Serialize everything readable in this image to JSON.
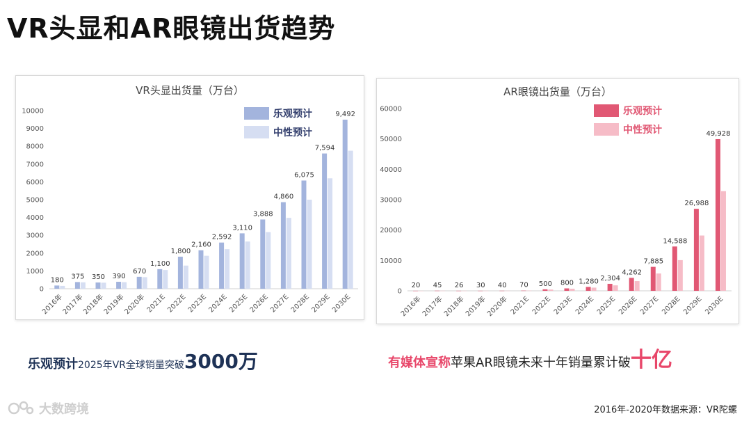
{
  "page": {
    "title": "VR头显和AR眼镜出货趋势",
    "caption_left": {
      "highlight": "乐观预计",
      "middle": "2025年VR全球销量突破",
      "big": "3000万"
    },
    "caption_right": {
      "highlight": "有媒体宣称",
      "middle": "苹果AR眼镜未来十年销量累计破",
      "big": "十亿"
    },
    "logo_text": "大数跨境",
    "source": "2016年-2020年数据来源：VR陀螺"
  },
  "chart_data": [
    {
      "type": "bar",
      "title": "VR头显出货量（万台）",
      "categories": [
        "2016年",
        "2017年",
        "2018年",
        "2019年",
        "2020年",
        "2021E",
        "2022E",
        "2023E",
        "2024E",
        "2025E",
        "2026E",
        "2027E",
        "2028E",
        "2029E",
        "2030E"
      ],
      "series": [
        {
          "name": "乐观预计",
          "color": "#a3b4dd",
          "values": [
            180,
            375,
            350,
            390,
            670,
            1100,
            1800,
            2160,
            2592,
            3110,
            3888,
            4860,
            6075,
            7594,
            9492
          ]
        },
        {
          "name": "中性预计",
          "color": "#d6def2",
          "values": [
            160,
            360,
            340,
            370,
            650,
            1050,
            1300,
            1850,
            2220,
            2650,
            3180,
            3980,
            5000,
            6200,
            7750
          ]
        }
      ],
      "labels": [
        "180",
        "375",
        "350",
        "390",
        "670",
        "1,100",
        "1,800",
        "2,160",
        "2,592",
        "3,110",
        "3,888",
        "4,860",
        "6,075",
        "7,594",
        "9,492"
      ],
      "yticks": [
        "0",
        "1000",
        "2000",
        "3000",
        "4000",
        "5000",
        "6000",
        "7000",
        "8000",
        "9000",
        "10000"
      ],
      "ylim": [
        0,
        10000
      ],
      "legend_text_color": "#34406e",
      "legend": "top-right",
      "grid": false
    },
    {
      "type": "bar",
      "title": "AR眼镜出货量（万台）",
      "categories": [
        "2016年",
        "2017年",
        "2018年",
        "2019年",
        "2020年",
        "2021E",
        "2022E",
        "2023E",
        "2024E",
        "2025E",
        "2026E",
        "2027E",
        "2028E",
        "2029E",
        "2030E"
      ],
      "series": [
        {
          "name": "乐观预计",
          "color": "#e15874",
          "values": [
            20,
            45,
            26,
            30,
            40,
            70,
            500,
            800,
            1280,
            2304,
            4262,
            7885,
            14588,
            26988,
            49928
          ]
        },
        {
          "name": "中性预计",
          "color": "#f6bcc7",
          "values": [
            18,
            40,
            22,
            28,
            35,
            65,
            420,
            700,
            1050,
            1800,
            3200,
            5700,
            10100,
            18200,
            32800
          ]
        }
      ],
      "labels": [
        "20",
        "45",
        "26",
        "30",
        "40",
        "70",
        "500",
        "800",
        "1,280",
        "2,304",
        "4,262",
        "7,885",
        "14,588",
        "26,988",
        "49,928"
      ],
      "yticks": [
        "0",
        "10000",
        "20000",
        "30000",
        "40000",
        "50000",
        "60000"
      ],
      "ylim": [
        0,
        60000
      ],
      "legend_text_color": "#e15874",
      "legend": "top-right",
      "grid": false
    }
  ]
}
